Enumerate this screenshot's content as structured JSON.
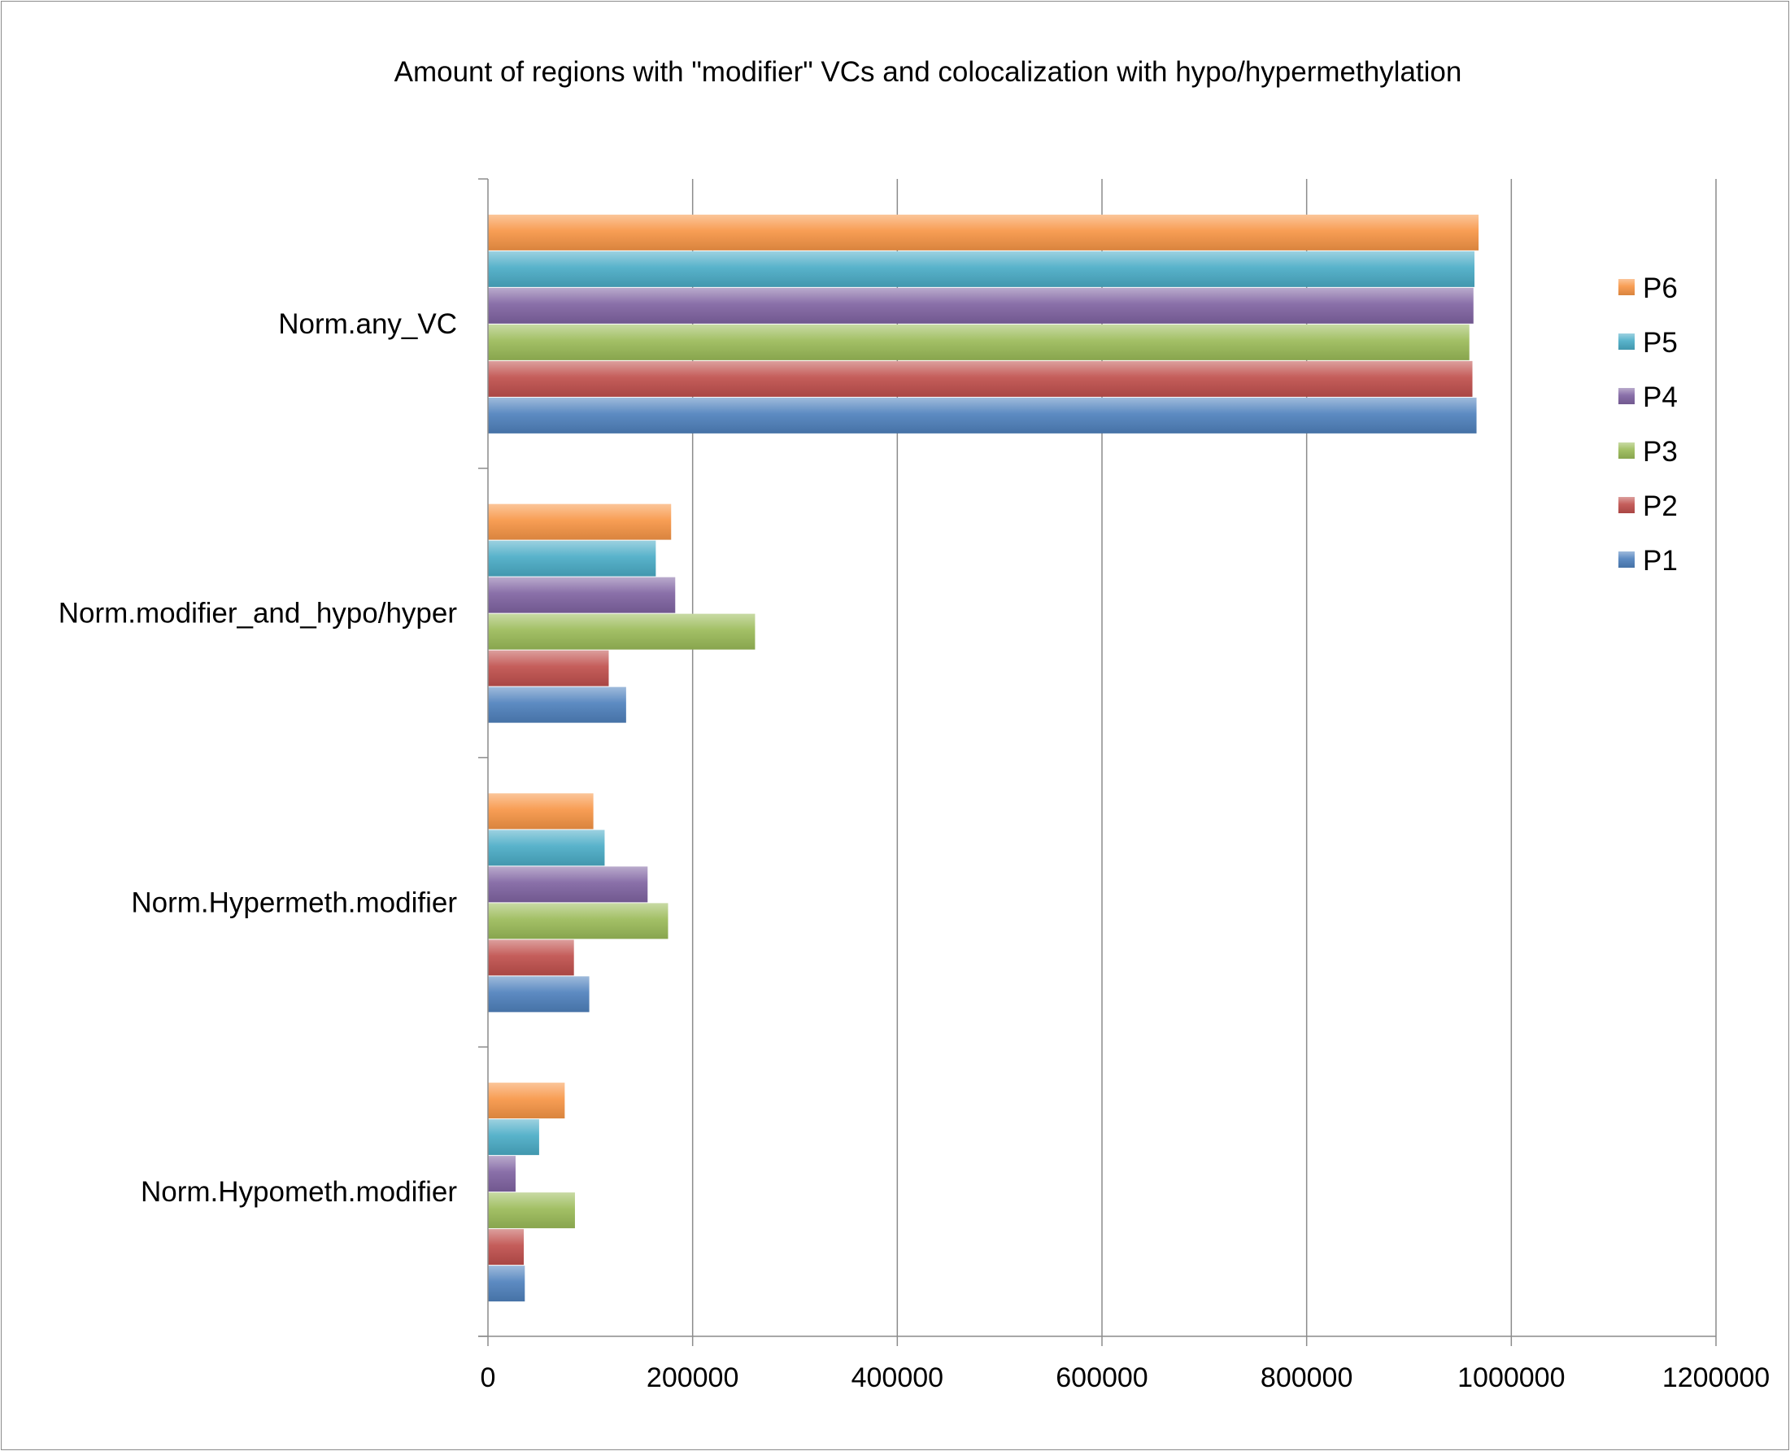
{
  "chart_data": {
    "type": "bar",
    "orientation": "horizontal",
    "title": "Amount of regions with \"modifier\" VCs and colocalization with hypo/hypermethylation",
    "xlabel": "",
    "ylabel": "",
    "categories": [
      "Norm.any_VC",
      "Norm.modifier_and_hypo/hyper",
      "Norm.Hypermeth.modifier",
      "Norm.Hypometh.modifier"
    ],
    "xlim": [
      0,
      1200000
    ],
    "x_ticks": [
      "0",
      "200000",
      "400000",
      "600000",
      "800000",
      "1000000",
      "1200000"
    ],
    "grid": true,
    "legend_position": "right",
    "series": [
      {
        "name": "P1",
        "color": "#4f81bd",
        "values": [
          966000,
          135000,
          99000,
          36000
        ]
      },
      {
        "name": "P2",
        "color": "#c0504d",
        "values": [
          962000,
          118000,
          84000,
          35000
        ]
      },
      {
        "name": "P3",
        "color": "#9bbb59",
        "values": [
          959000,
          261000,
          176000,
          85000
        ]
      },
      {
        "name": "P4",
        "color": "#8064a2",
        "values": [
          963000,
          183000,
          156000,
          27000
        ]
      },
      {
        "name": "P5",
        "color": "#4bacc6",
        "values": [
          964000,
          164000,
          114000,
          50000
        ]
      },
      {
        "name": "P6",
        "color": "#f79646",
        "values": [
          968000,
          179000,
          103000,
          75000
        ]
      }
    ]
  }
}
